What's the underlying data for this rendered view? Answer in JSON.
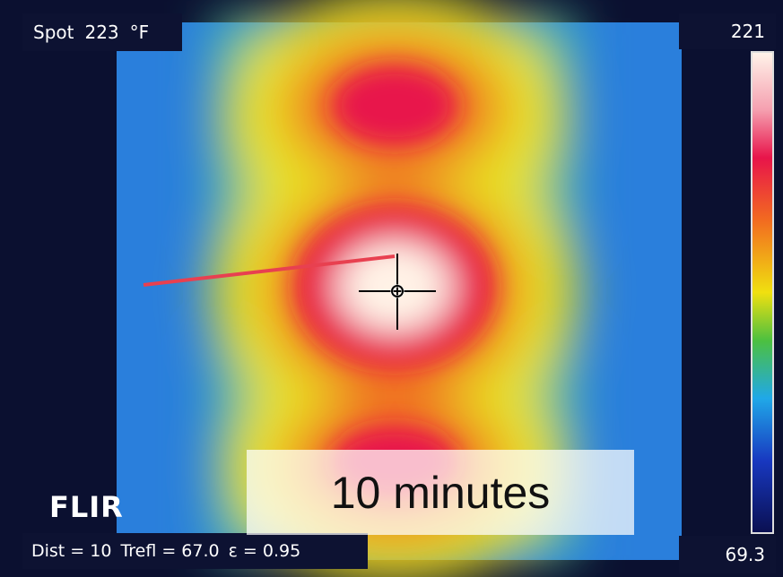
{
  "spot": {
    "label": "Spot",
    "value": "223",
    "unit": "°F"
  },
  "scale": {
    "max": "221",
    "min": "69.3"
  },
  "brand": "FLIR",
  "caption": "10 minutes",
  "params": {
    "distance": "Dist = 10",
    "reflected_temp": "Trefl = 67.0",
    "emissivity": "ε = 0.95"
  }
}
